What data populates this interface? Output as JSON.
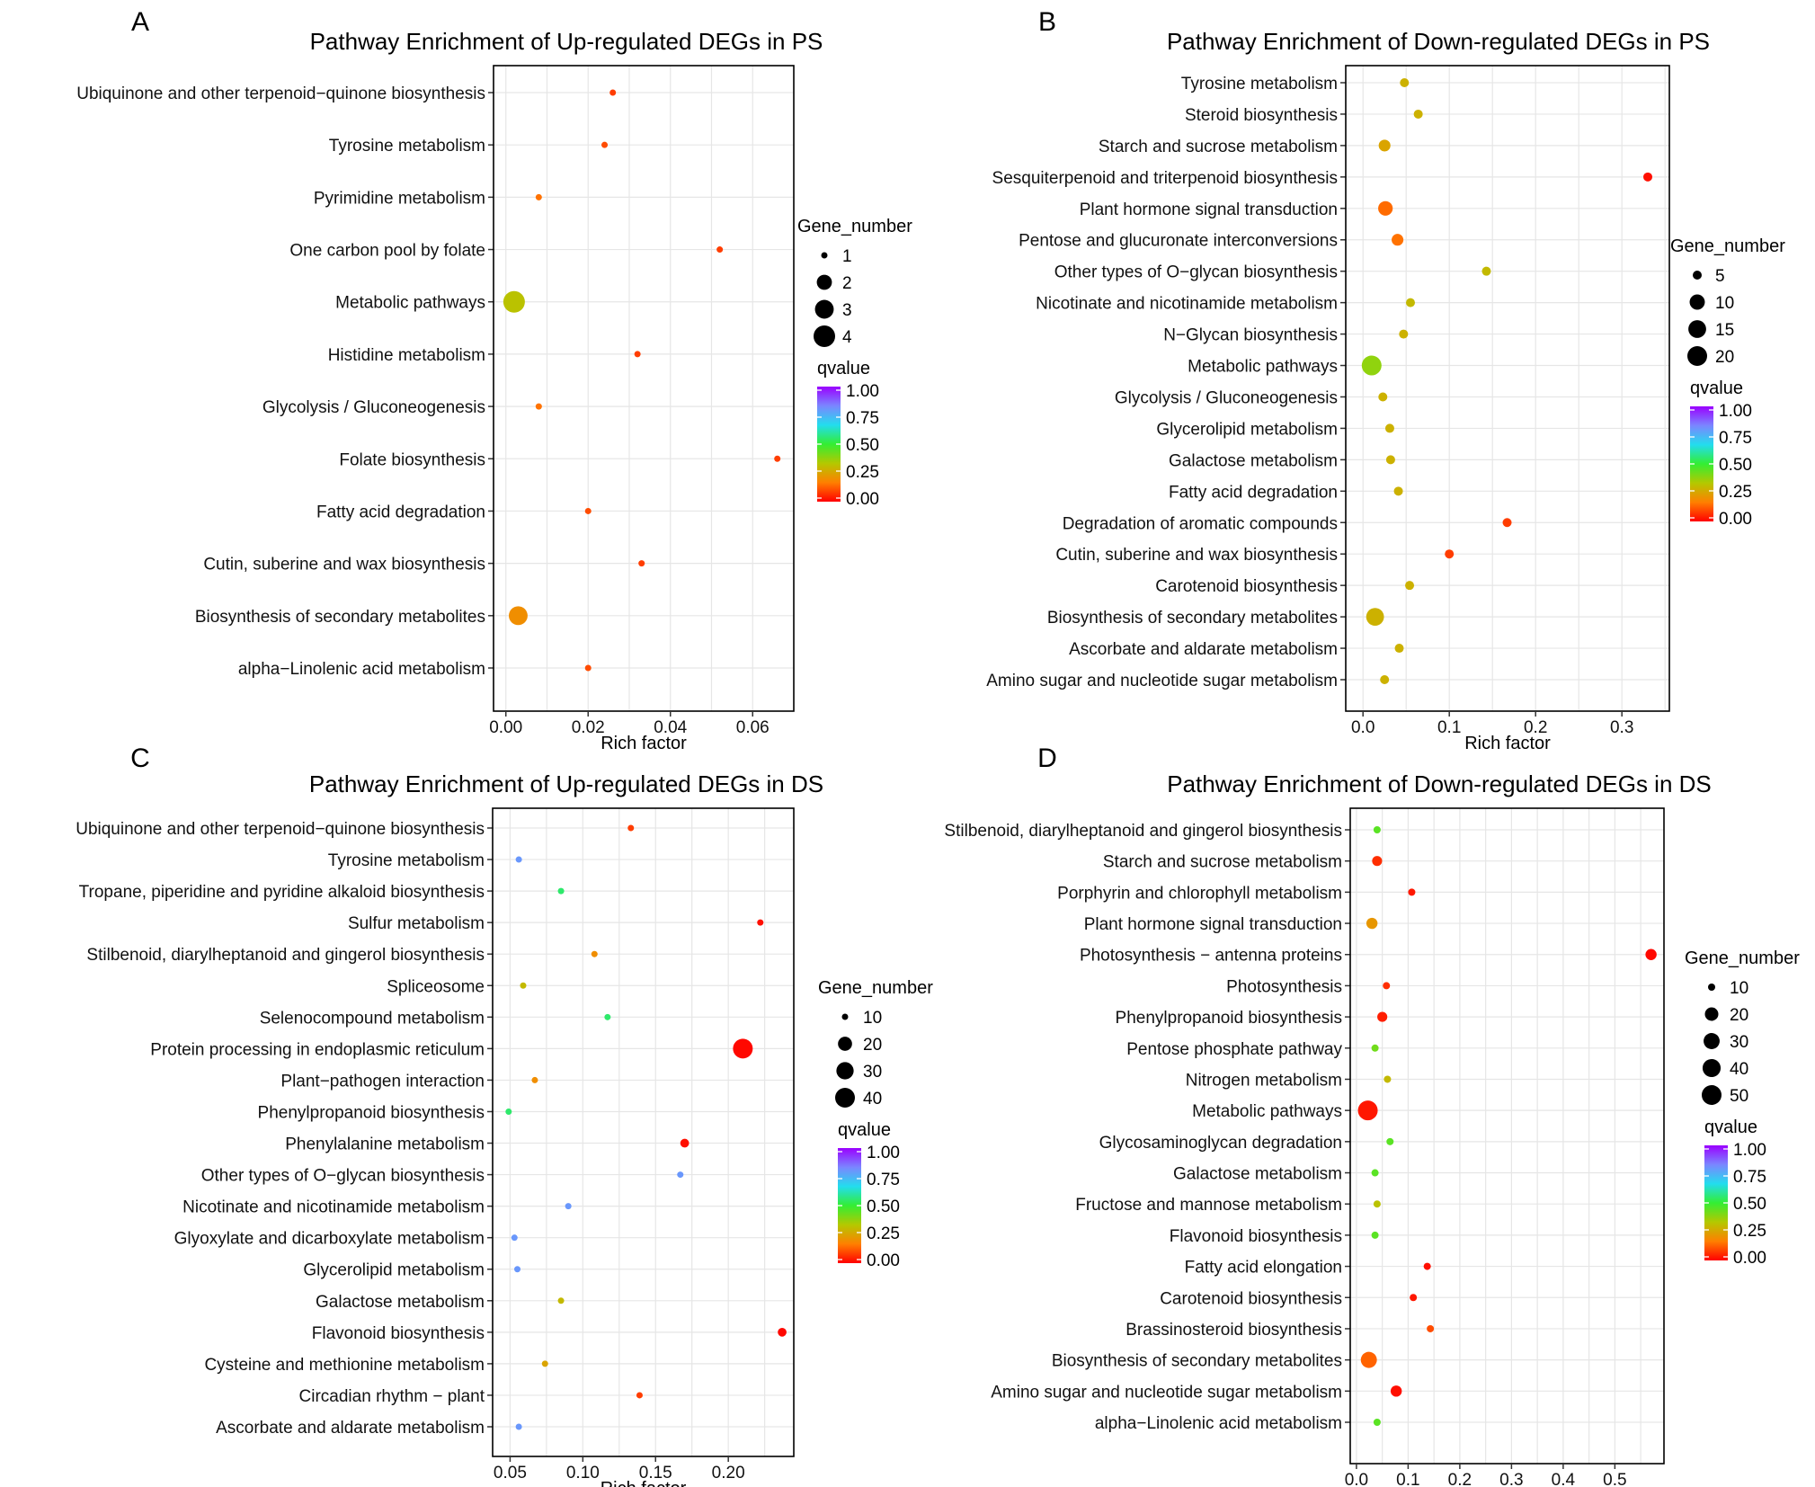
{
  "figure": {
    "legend_size_title": "Gene_number",
    "legend_color_title": "qvalue"
  },
  "palette": {
    "panel_border": "#000000",
    "grid": "#e6e6e6",
    "colorscale": [
      "#ff0000",
      "#ff7f00",
      "#b4c800",
      "#33ee33",
      "#22ddee",
      "#7b86ff",
      "#9a00ff"
    ]
  },
  "chart_data": [
    {
      "panel": "A",
      "type": "scatter",
      "title": "Pathway Enrichment of Up-regulated DEGs in PS",
      "xlabel": "Rich factor",
      "xlim": [
        -0.003,
        0.07
      ],
      "xticks": [
        0.0,
        0.02,
        0.04,
        0.06
      ],
      "xtick_labels": [
        "0.00",
        "0.02",
        "0.04",
        "0.06"
      ],
      "size_legend": {
        "values": [
          1,
          2,
          3,
          4
        ],
        "labels": [
          "1",
          "2",
          "3",
          "4"
        ]
      },
      "color_legend": {
        "labels": [
          "1.00",
          "0.75",
          "0.50",
          "0.25",
          "0.00"
        ]
      },
      "points": [
        {
          "pathway": "Ubiquinone and other terpenoid−quinone biosynthesis",
          "rich_factor": 0.026,
          "gene_number": 1,
          "qvalue": 0.08
        },
        {
          "pathway": "Tyrosine metabolism",
          "rich_factor": 0.024,
          "gene_number": 1,
          "qvalue": 0.1
        },
        {
          "pathway": "Pyrimidine metabolism",
          "rich_factor": 0.008,
          "gene_number": 1,
          "qvalue": 0.15
        },
        {
          "pathway": "One carbon pool by folate",
          "rich_factor": 0.052,
          "gene_number": 1,
          "qvalue": 0.08
        },
        {
          "pathway": "Metabolic pathways",
          "rich_factor": 0.002,
          "gene_number": 4,
          "qvalue": 0.32
        },
        {
          "pathway": "Histidine metabolism",
          "rich_factor": 0.032,
          "gene_number": 1,
          "qvalue": 0.08
        },
        {
          "pathway": "Glycolysis / Gluconeogenesis",
          "rich_factor": 0.008,
          "gene_number": 1,
          "qvalue": 0.15
        },
        {
          "pathway": "Folate biosynthesis",
          "rich_factor": 0.066,
          "gene_number": 1,
          "qvalue": 0.08
        },
        {
          "pathway": "Fatty acid degradation",
          "rich_factor": 0.02,
          "gene_number": 1,
          "qvalue": 0.1
        },
        {
          "pathway": "Cutin, suberine and wax biosynthesis",
          "rich_factor": 0.033,
          "gene_number": 1,
          "qvalue": 0.08
        },
        {
          "pathway": "Biosynthesis of secondary metabolites",
          "rich_factor": 0.003,
          "gene_number": 3,
          "qvalue": 0.2
        },
        {
          "pathway": "alpha−Linolenic acid metabolism",
          "rich_factor": 0.02,
          "gene_number": 1,
          "qvalue": 0.1
        }
      ]
    },
    {
      "panel": "B",
      "type": "scatter",
      "title": "Pathway Enrichment of Down-regulated DEGs in PS",
      "xlabel": "Rich factor",
      "xlim": [
        -0.02,
        0.355
      ],
      "xticks": [
        0.0,
        0.1,
        0.2,
        0.3
      ],
      "xtick_labels": [
        "0.0",
        "0.1",
        "0.2",
        "0.3"
      ],
      "size_legend": {
        "values": [
          5,
          10,
          15,
          20
        ],
        "labels": [
          "5",
          "10",
          "15",
          "20"
        ]
      },
      "color_legend": {
        "labels": [
          "1.00",
          "0.75",
          "0.50",
          "0.25",
          "0.00"
        ]
      },
      "points": [
        {
          "pathway": "Tyrosine metabolism",
          "rich_factor": 0.048,
          "gene_number": 3,
          "qvalue": 0.28
        },
        {
          "pathway": "Steroid biosynthesis",
          "rich_factor": 0.064,
          "gene_number": 3,
          "qvalue": 0.28
        },
        {
          "pathway": "Starch and sucrose metabolism",
          "rich_factor": 0.025,
          "gene_number": 6,
          "qvalue": 0.25
        },
        {
          "pathway": "Sesquiterpenoid and triterpenoid biosynthesis",
          "rich_factor": 0.33,
          "gene_number": 5,
          "qvalue": 0.02
        },
        {
          "pathway": "Plant hormone signal transduction",
          "rich_factor": 0.026,
          "gene_number": 9,
          "qvalue": 0.14
        },
        {
          "pathway": "Pentose and glucuronate interconversions",
          "rich_factor": 0.04,
          "gene_number": 6,
          "qvalue": 0.15
        },
        {
          "pathway": "Other types of O−glycan biosynthesis",
          "rich_factor": 0.143,
          "gene_number": 1,
          "qvalue": 0.3
        },
        {
          "pathway": "Nicotinate and nicotinamide metabolism",
          "rich_factor": 0.055,
          "gene_number": 1,
          "qvalue": 0.3
        },
        {
          "pathway": "N−Glycan biosynthesis",
          "rich_factor": 0.047,
          "gene_number": 3,
          "qvalue": 0.28
        },
        {
          "pathway": "Metabolic pathways",
          "rich_factor": 0.01,
          "gene_number": 20,
          "qvalue": 0.38
        },
        {
          "pathway": "Glycolysis / Gluconeogenesis",
          "rich_factor": 0.023,
          "gene_number": 4,
          "qvalue": 0.28
        },
        {
          "pathway": "Glycerolipid metabolism",
          "rich_factor": 0.031,
          "gene_number": 3,
          "qvalue": 0.28
        },
        {
          "pathway": "Galactose metabolism",
          "rich_factor": 0.032,
          "gene_number": 3,
          "qvalue": 0.28
        },
        {
          "pathway": "Fatty acid degradation",
          "rich_factor": 0.041,
          "gene_number": 3,
          "qvalue": 0.28
        },
        {
          "pathway": "Degradation of aromatic compounds",
          "rich_factor": 0.167,
          "gene_number": 3,
          "qvalue": 0.08
        },
        {
          "pathway": "Cutin, suberine and wax biosynthesis",
          "rich_factor": 0.1,
          "gene_number": 4,
          "qvalue": 0.08
        },
        {
          "pathway": "Carotenoid biosynthesis",
          "rich_factor": 0.054,
          "gene_number": 3,
          "qvalue": 0.28
        },
        {
          "pathway": "Biosynthesis of secondary metabolites",
          "rich_factor": 0.014,
          "gene_number": 15,
          "qvalue": 0.28
        },
        {
          "pathway": "Ascorbate and aldarate metabolism",
          "rich_factor": 0.042,
          "gene_number": 3,
          "qvalue": 0.28
        },
        {
          "pathway": "Amino sugar and nucleotide sugar metabolism",
          "rich_factor": 0.025,
          "gene_number": 4,
          "qvalue": 0.28
        }
      ]
    },
    {
      "panel": "C",
      "type": "scatter",
      "title": "Pathway Enrichment of Up-regulated DEGs in DS",
      "xlabel": "Rich factor",
      "xlim": [
        0.038,
        0.245
      ],
      "xticks": [
        0.05,
        0.1,
        0.15,
        0.2
      ],
      "xtick_labels": [
        "0.05",
        "0.10",
        "0.15",
        "0.20"
      ],
      "size_legend": {
        "values": [
          10,
          20,
          30,
          40
        ],
        "labels": [
          "10",
          "20",
          "30",
          "40"
        ]
      },
      "color_legend": {
        "labels": [
          "1.00",
          "0.75",
          "0.50",
          "0.25",
          "0.00"
        ]
      },
      "points": [
        {
          "pathway": "Ubiquinone and other terpenoid−quinone biosynthesis",
          "rich_factor": 0.133,
          "gene_number": 8,
          "qvalue": 0.08
        },
        {
          "pathway": "Tyrosine metabolism",
          "rich_factor": 0.056,
          "gene_number": 5,
          "qvalue": 0.8
        },
        {
          "pathway": "Tropane, piperidine and pyridine alkaloid biosynthesis",
          "rich_factor": 0.085,
          "gene_number": 6,
          "qvalue": 0.55
        },
        {
          "pathway": "Sulfur metabolism",
          "rich_factor": 0.222,
          "gene_number": 8,
          "qvalue": 0.02
        },
        {
          "pathway": "Stilbenoid, diarylheptanoid and gingerol biosynthesis",
          "rich_factor": 0.108,
          "gene_number": 7,
          "qvalue": 0.2
        },
        {
          "pathway": "Spliceosome",
          "rich_factor": 0.059,
          "gene_number": 9,
          "qvalue": 0.3
        },
        {
          "pathway": "Selenocompound metabolism",
          "rich_factor": 0.117,
          "gene_number": 5,
          "qvalue": 0.55
        },
        {
          "pathway": "Protein processing in endoplasmic reticulum",
          "rich_factor": 0.21,
          "gene_number": 40,
          "qvalue": 0.01
        },
        {
          "pathway": "Plant−pathogen interaction",
          "rich_factor": 0.067,
          "gene_number": 10,
          "qvalue": 0.2
        },
        {
          "pathway": "Phenylpropanoid biosynthesis",
          "rich_factor": 0.049,
          "gene_number": 10,
          "qvalue": 0.55
        },
        {
          "pathway": "Phenylalanine metabolism",
          "rich_factor": 0.17,
          "gene_number": 11,
          "qvalue": 0.02
        },
        {
          "pathway": "Other types of O−glycan biosynthesis",
          "rich_factor": 0.167,
          "gene_number": 2,
          "qvalue": 0.8
        },
        {
          "pathway": "Nicotinate and nicotinamide metabolism",
          "rich_factor": 0.09,
          "gene_number": 5,
          "qvalue": 0.8
        },
        {
          "pathway": "Glyoxylate and dicarboxylate metabolism",
          "rich_factor": 0.053,
          "gene_number": 7,
          "qvalue": 0.8
        },
        {
          "pathway": "Glycerolipid metabolism",
          "rich_factor": 0.055,
          "gene_number": 6,
          "qvalue": 0.8
        },
        {
          "pathway": "Galactose metabolism",
          "rich_factor": 0.085,
          "gene_number": 8,
          "qvalue": 0.3
        },
        {
          "pathway": "Flavonoid biosynthesis",
          "rich_factor": 0.237,
          "gene_number": 11,
          "qvalue": 0.01
        },
        {
          "pathway": "Cysteine and methionine metabolism",
          "rich_factor": 0.074,
          "gene_number": 9,
          "qvalue": 0.25
        },
        {
          "pathway": "Circadian rhythm − plant",
          "rich_factor": 0.139,
          "gene_number": 8,
          "qvalue": 0.08
        },
        {
          "pathway": "Ascorbate and aldarate metabolism",
          "rich_factor": 0.056,
          "gene_number": 5,
          "qvalue": 0.8
        }
      ]
    },
    {
      "panel": "D",
      "type": "scatter",
      "title": "Pathway Enrichment of Down-regulated DEGs in DS",
      "xlabel": "Rich factor",
      "xlim": [
        -0.012,
        0.595
      ],
      "xticks": [
        0.0,
        0.1,
        0.2,
        0.3,
        0.4,
        0.5
      ],
      "xtick_labels": [
        "0.0",
        "0.1",
        "0.2",
        "0.3",
        "0.4",
        "0.5"
      ],
      "size_legend": {
        "values": [
          10,
          20,
          30,
          40,
          50
        ],
        "labels": [
          "10",
          "20",
          "30",
          "40",
          "50"
        ]
      },
      "color_legend": {
        "labels": [
          "1.00",
          "0.75",
          "0.50",
          "0.25",
          "0.00"
        ]
      },
      "points": [
        {
          "pathway": "Stilbenoid, diarylheptanoid and gingerol biosynthesis",
          "rich_factor": 0.04,
          "gene_number": 6,
          "qvalue": 0.45
        },
        {
          "pathway": "Starch and sucrose metabolism",
          "rich_factor": 0.04,
          "gene_number": 12,
          "qvalue": 0.06
        },
        {
          "pathway": "Porphyrin and chlorophyll metabolism",
          "rich_factor": 0.107,
          "gene_number": 8,
          "qvalue": 0.03
        },
        {
          "pathway": "Plant hormone signal transduction",
          "rich_factor": 0.03,
          "gene_number": 14,
          "qvalue": 0.22
        },
        {
          "pathway": "Photosynthesis − antenna proteins",
          "rich_factor": 0.57,
          "gene_number": 14,
          "qvalue": 0.01
        },
        {
          "pathway": "Photosynthesis",
          "rich_factor": 0.058,
          "gene_number": 10,
          "qvalue": 0.06
        },
        {
          "pathway": "Phenylpropanoid biosynthesis",
          "rich_factor": 0.05,
          "gene_number": 12,
          "qvalue": 0.04
        },
        {
          "pathway": "Pentose phosphate pathway",
          "rich_factor": 0.036,
          "gene_number": 6,
          "qvalue": 0.42
        },
        {
          "pathway": "Nitrogen metabolism",
          "rich_factor": 0.06,
          "gene_number": 6,
          "qvalue": 0.3
        },
        {
          "pathway": "Metabolic pathways",
          "rich_factor": 0.022,
          "gene_number": 50,
          "qvalue": 0.03
        },
        {
          "pathway": "Glycosaminoglycan degradation",
          "rich_factor": 0.065,
          "gene_number": 3,
          "qvalue": 0.45
        },
        {
          "pathway": "Galactose metabolism",
          "rich_factor": 0.036,
          "gene_number": 6,
          "qvalue": 0.45
        },
        {
          "pathway": "Fructose and mannose metabolism",
          "rich_factor": 0.04,
          "gene_number": 6,
          "qvalue": 0.32
        },
        {
          "pathway": "Flavonoid biosynthesis",
          "rich_factor": 0.036,
          "gene_number": 6,
          "qvalue": 0.45
        },
        {
          "pathway": "Fatty acid elongation",
          "rich_factor": 0.137,
          "gene_number": 8,
          "qvalue": 0.02
        },
        {
          "pathway": "Carotenoid biosynthesis",
          "rich_factor": 0.11,
          "gene_number": 8,
          "qvalue": 0.03
        },
        {
          "pathway": "Brassinosteroid biosynthesis",
          "rich_factor": 0.143,
          "gene_number": 5,
          "qvalue": 0.1
        },
        {
          "pathway": "Biosynthesis of secondary metabolites",
          "rich_factor": 0.024,
          "gene_number": 30,
          "qvalue": 0.13
        },
        {
          "pathway": "Amino sugar and nucleotide sugar metabolism",
          "rich_factor": 0.077,
          "gene_number": 14,
          "qvalue": 0.02
        },
        {
          "pathway": "alpha−Linolenic acid metabolism",
          "rich_factor": 0.04,
          "gene_number": 6,
          "qvalue": 0.45
        }
      ]
    }
  ]
}
